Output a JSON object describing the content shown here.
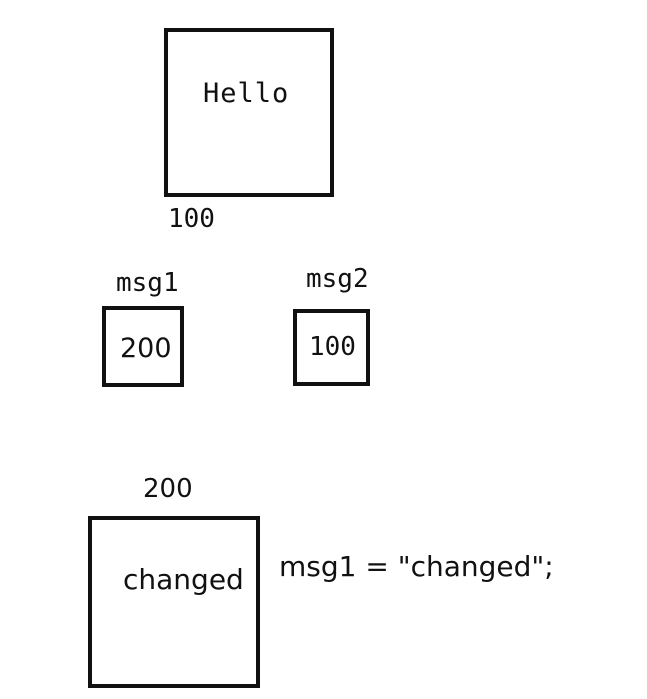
{
  "diagram": {
    "heap_objects": [
      {
        "value": "Hello",
        "address": "100"
      },
      {
        "value": "changed",
        "address": "200"
      }
    ],
    "variables": [
      {
        "name": "msg1",
        "value": "200"
      },
      {
        "name": "msg2",
        "value": "100"
      }
    ],
    "code": "msg1 = \"changed\";"
  }
}
